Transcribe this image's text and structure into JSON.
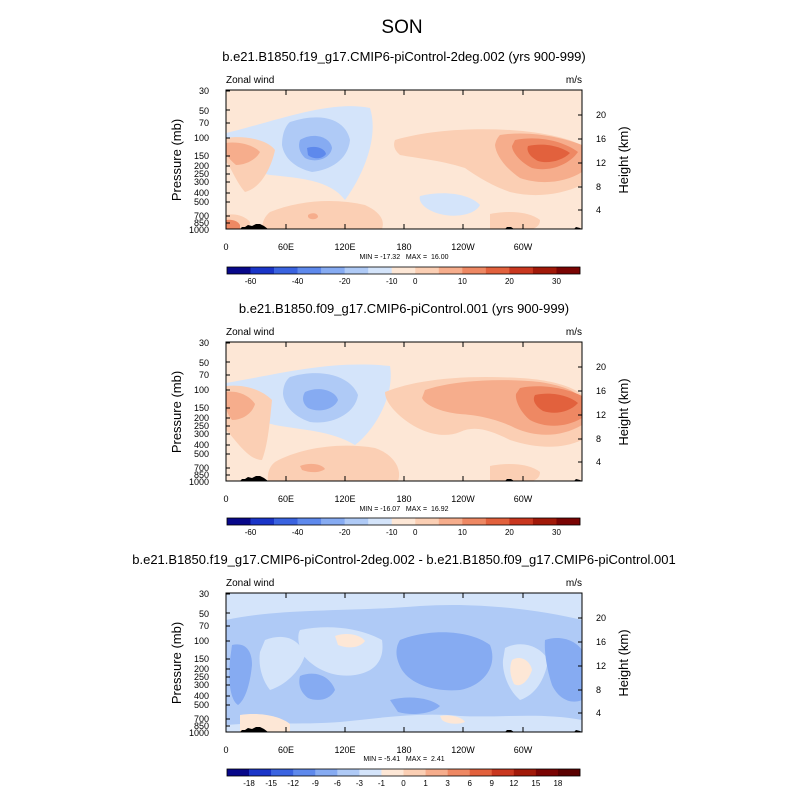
{
  "figure": {
    "title": "SON"
  },
  "chart_data": [
    {
      "type": "heatmap",
      "title": "b.e21.B1850.f19_g17.CMIP6-piControl-2deg.002 (yrs 900-999)",
      "left_label": "Zonal wind",
      "right_label": "m/s",
      "ylabel": "Pressure (mb)",
      "ylabel_right": "Height (km)",
      "x_ticks": [
        "0",
        "60E",
        "120E",
        "180",
        "120W",
        "60W"
      ],
      "y_ticks": [
        "30",
        "50",
        "70",
        "100",
        "150",
        "200",
        "250",
        "300",
        "400",
        "500",
        "700",
        "850",
        "1000"
      ],
      "height_ticks": [
        "4",
        "8",
        "12",
        "16",
        "20"
      ],
      "stats": "MIN = -17.32   MAX =  16.00",
      "colorbar": {
        "labels": [
          "-60",
          "-40",
          "-20",
          "-10",
          "0",
          "10",
          "20",
          "30"
        ],
        "colors": [
          "#08088a",
          "#1a35c8",
          "#3a63e0",
          "#5e89ec",
          "#86abf2",
          "#afcaf6",
          "#d4e4fa",
          "#fde7d6",
          "#fbcfb4",
          "#f6ad8c",
          "#ee8863",
          "#e2613d",
          "#c9371f",
          "#a11909",
          "#7a0403"
        ]
      }
    },
    {
      "type": "heatmap",
      "title": "b.e21.B1850.f09_g17.CMIP6-piControl.001 (yrs 900-999)",
      "left_label": "Zonal wind",
      "right_label": "m/s",
      "ylabel": "Pressure (mb)",
      "ylabel_right": "Height (km)",
      "x_ticks": [
        "0",
        "60E",
        "120E",
        "180",
        "120W",
        "60W"
      ],
      "y_ticks": [
        "30",
        "50",
        "70",
        "100",
        "150",
        "200",
        "250",
        "300",
        "400",
        "500",
        "700",
        "850",
        "1000"
      ],
      "height_ticks": [
        "4",
        "8",
        "12",
        "16",
        "20"
      ],
      "stats": "MIN = -16.07   MAX =  16.92",
      "colorbar": {
        "labels": [
          "-60",
          "-40",
          "-20",
          "-10",
          "0",
          "10",
          "20",
          "30"
        ],
        "colors": [
          "#08088a",
          "#1a35c8",
          "#3a63e0",
          "#5e89ec",
          "#86abf2",
          "#afcaf6",
          "#d4e4fa",
          "#fde7d6",
          "#fbcfb4",
          "#f6ad8c",
          "#ee8863",
          "#e2613d",
          "#c9371f",
          "#a11909",
          "#7a0403"
        ]
      }
    },
    {
      "type": "heatmap",
      "title": "b.e21.B1850.f19_g17.CMIP6-piControl-2deg.002 - b.e21.B1850.f09_g17.CMIP6-piControl.001",
      "left_label": "Zonal wind",
      "right_label": "m/s",
      "ylabel": "Pressure (mb)",
      "ylabel_right": "Height (km)",
      "x_ticks": [
        "0",
        "60E",
        "120E",
        "180",
        "120W",
        "60W"
      ],
      "y_ticks": [
        "30",
        "50",
        "70",
        "100",
        "150",
        "200",
        "250",
        "300",
        "400",
        "500",
        "700",
        "850",
        "1000"
      ],
      "height_ticks": [
        "4",
        "8",
        "12",
        "16",
        "20"
      ],
      "stats": "MIN = -5.41   MAX =  2.41",
      "colorbar": {
        "labels": [
          "-18",
          "-15",
          "-12",
          "-9",
          "-6",
          "-3",
          "-1",
          "0",
          "1",
          "3",
          "6",
          "9",
          "12",
          "15",
          "18"
        ],
        "colors": [
          "#08088a",
          "#1a35c8",
          "#3a63e0",
          "#5e89ec",
          "#86abf2",
          "#afcaf6",
          "#d4e4fa",
          "#fde7d6",
          "#fbcfb4",
          "#f6ad8c",
          "#ee8863",
          "#e2613d",
          "#c9371f",
          "#a11909",
          "#7a0403",
          "#5a0000"
        ]
      }
    }
  ]
}
